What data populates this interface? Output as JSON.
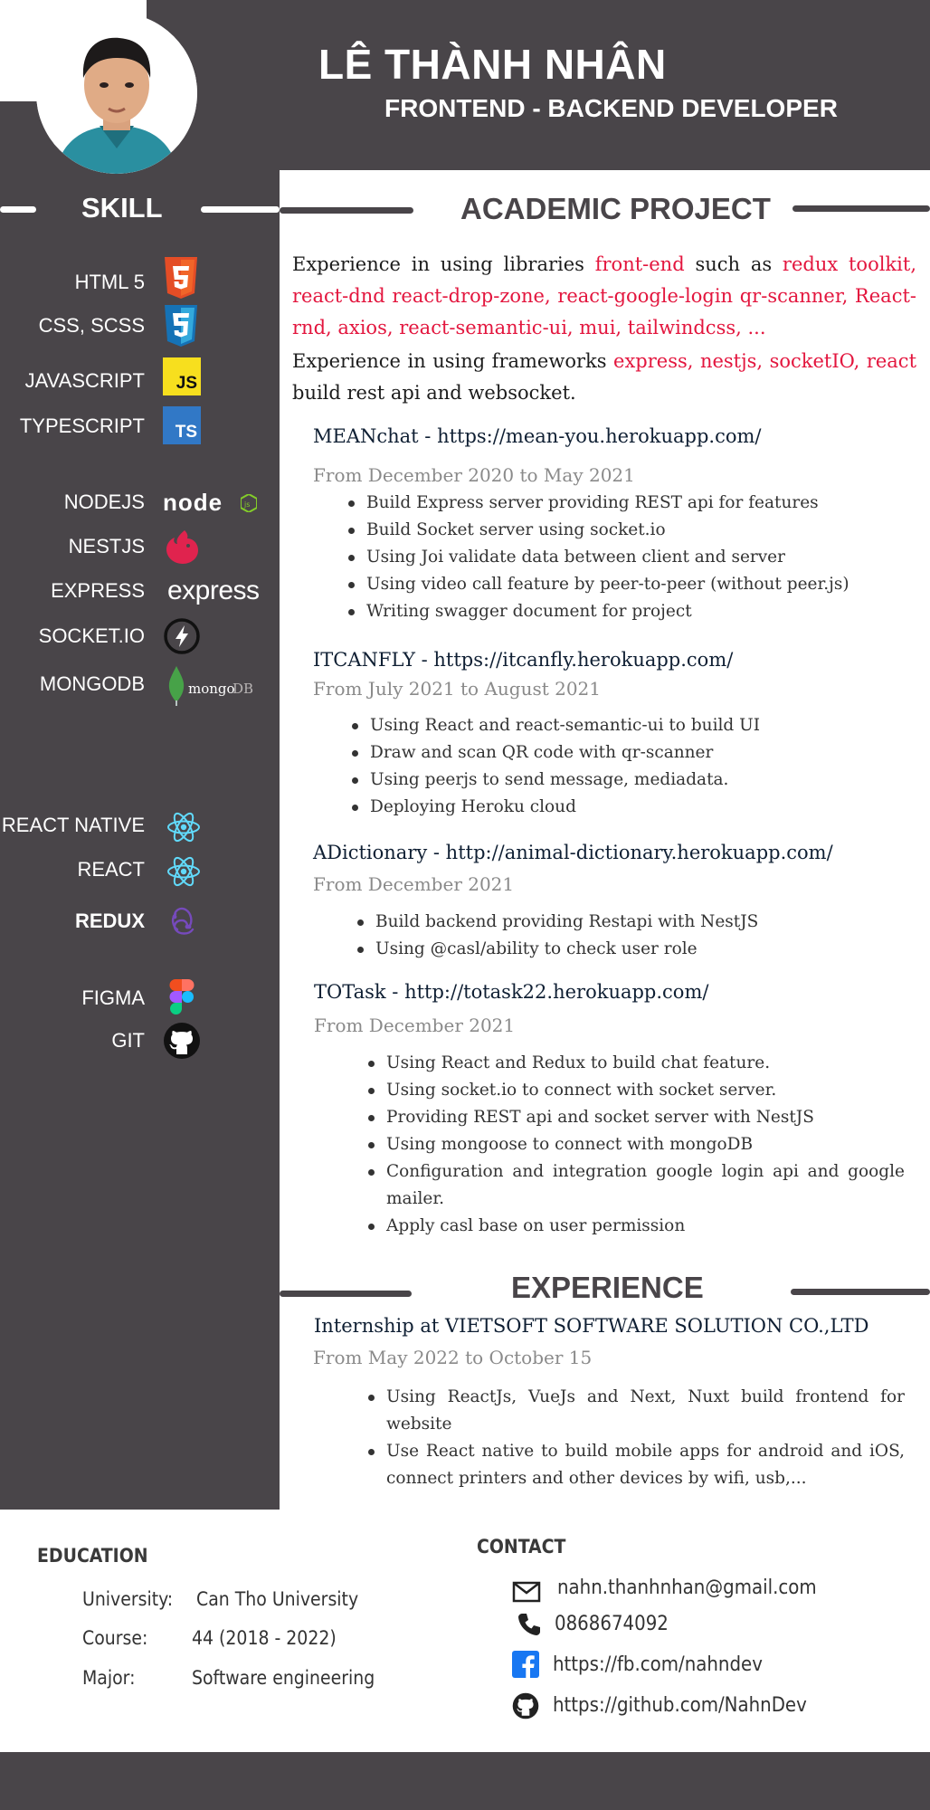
{
  "header": {
    "name": "LÊ THÀNH NHÂN",
    "role": "FRONTEND - BACKEND DEVELOPER"
  },
  "colors": {
    "dark": "#494549",
    "accent": "#e3163e",
    "link": "#0f1f33"
  },
  "skills": {
    "title": "SKILL",
    "items": [
      {
        "label": "HTML 5",
        "icon": "html5-icon"
      },
      {
        "label": "CSS, SCSS",
        "icon": "css3-icon"
      },
      {
        "label": "JAVASCRIPT",
        "icon": "javascript-icon",
        "icon_text": "JS"
      },
      {
        "label": "TYPESCRIPT",
        "icon": "typescript-icon",
        "icon_text": "TS"
      },
      {
        "label": "NODEJS",
        "icon": "nodejs-logo",
        "icon_text": "node"
      },
      {
        "label": "NESTJS",
        "icon": "nestjs-icon"
      },
      {
        "label": "EXPRESS",
        "icon": "express-logo",
        "icon_text": "express"
      },
      {
        "label": "SOCKET.IO",
        "icon": "socketio-icon"
      },
      {
        "label": "MONGODB",
        "icon": "mongodb-logo",
        "icon_text": "mongo",
        "icon_text2": "DB"
      },
      {
        "label": "REACT NATIVE",
        "icon": "react-icon"
      },
      {
        "label": "REACT",
        "icon": "react-icon"
      },
      {
        "label": "REDUX",
        "icon": "redux-icon"
      },
      {
        "label": "FIGMA",
        "icon": "figma-icon"
      },
      {
        "label": "GIT",
        "icon": "github-icon"
      }
    ]
  },
  "academic": {
    "title": "ACADEMIC PROJECT",
    "intro1": {
      "a": "Experience in using libraries ",
      "b": "front-end",
      "c": " such as ",
      "d": "redux toolkit, react-dnd react-drop-zone, react-google-login qr-scanner, React-rnd, axios, react-semantic-ui, mui, tailwindcss, ..."
    },
    "intro2": {
      "a": "Experience in using frameworks ",
      "b": "express, nestjs, socketIO, react",
      "c": " build rest api and websocket."
    },
    "projects": [
      {
        "title": "MEANchat  - https://mean-you.herokuapp.com/",
        "date": "From December 2020 to May 2021",
        "bullets": [
          "Build Express server providing REST api for features",
          "Build Socket server using socket.io",
          "Using Joi validate data between client and server",
          "Using video call feature by peer-to-peer (without peer.js)",
          "Writing swagger document for project"
        ]
      },
      {
        "title": "ITCANFLY - https://itcanfly.herokuapp.com/",
        "date": "From  July 2021  to August 2021",
        "bullets": [
          "Using React and react-semantic-ui to build UI",
          "Draw and scan QR code with qr-scanner",
          "Using peerjs to send message, mediadata.",
          "Deploying Heroku cloud"
        ]
      },
      {
        "title": "ADictionary - http://animal-dictionary.herokuapp.com/",
        "date": "From December 2021",
        "bullets": [
          "Build backend providing Restapi with NestJS",
          "Using @casl/ability to check user role"
        ]
      },
      {
        "title": "TOTask  -  http://totask22.herokuapp.com/",
        "date": "From December 2021",
        "bullets": [
          "Using React and Redux to build chat feature.",
          "Using socket.io to connect with socket server.",
          "Providing REST api and socket server with NestJS",
          "Using mongoose to connect with mongoDB",
          "Configuration and integration google login api and google mailer.",
          "Apply casl base on user permission"
        ]
      }
    ]
  },
  "experience": {
    "title": "EXPERIENCE",
    "company": "Internship at VIETSOFT SOFTWARE SOLUTION CO.,LTD",
    "date": "From May  2022 to October 15",
    "bullets": [
      "Using ReactJs, VueJs and Next, Nuxt build frontend for website",
      "Use React native to build mobile apps for android and iOS, connect printers and other devices by wifi, usb,..."
    ]
  },
  "education": {
    "title": "EDUCATION",
    "rows": [
      {
        "label": "University:",
        "value": "Can Tho University"
      },
      {
        "label": "Course:",
        "value": "44 (2018 - 2022)"
      },
      {
        "label": "Major:",
        "value": "Software engineering"
      }
    ]
  },
  "contact": {
    "title": "CONTACT",
    "items": [
      {
        "icon": "mail-icon",
        "text": "nahn.thanhnhan@gmail.com"
      },
      {
        "icon": "phone-icon",
        "text": "0868674092"
      },
      {
        "icon": "facebook-icon",
        "text": "https://fb.com/nahndev"
      },
      {
        "icon": "github-icon",
        "text": "https://github.com/NahnDev"
      }
    ]
  }
}
